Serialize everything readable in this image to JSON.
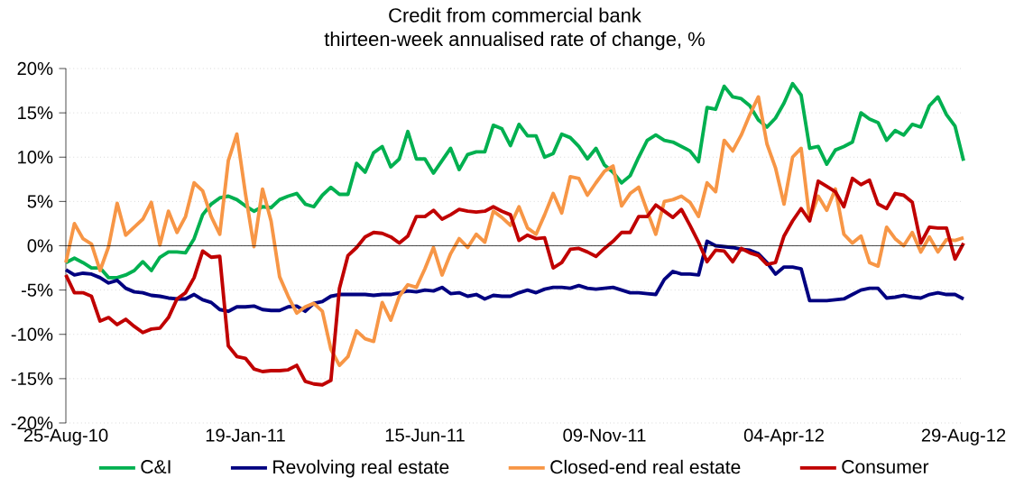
{
  "chart_data": {
    "type": "line",
    "title": "Credit from commercial bank",
    "subtitle": "thirteen-week annualised rate of change, %",
    "x": [
      "2010-08-25",
      "2010-09-01",
      "2010-09-08",
      "2010-09-15",
      "2010-09-22",
      "2010-09-29",
      "2010-10-06",
      "2010-10-13",
      "2010-10-20",
      "2010-10-27",
      "2010-11-03",
      "2010-11-10",
      "2010-11-17",
      "2010-11-24",
      "2010-12-01",
      "2010-12-08",
      "2010-12-15",
      "2010-12-22",
      "2010-12-29",
      "2011-01-05",
      "2011-01-12",
      "2011-01-19",
      "2011-01-26",
      "2011-02-02",
      "2011-02-09",
      "2011-02-16",
      "2011-02-23",
      "2011-03-02",
      "2011-03-09",
      "2011-03-16",
      "2011-03-23",
      "2011-03-30",
      "2011-04-06",
      "2011-04-13",
      "2011-04-20",
      "2011-04-27",
      "2011-05-04",
      "2011-05-11",
      "2011-05-18",
      "2011-05-25",
      "2011-06-01",
      "2011-06-08",
      "2011-06-15",
      "2011-06-22",
      "2011-06-29",
      "2011-07-06",
      "2011-07-13",
      "2011-07-20",
      "2011-07-27",
      "2011-08-03",
      "2011-08-10",
      "2011-08-17",
      "2011-08-24",
      "2011-08-31",
      "2011-09-07",
      "2011-09-14",
      "2011-09-21",
      "2011-09-28",
      "2011-10-05",
      "2011-10-12",
      "2011-10-19",
      "2011-10-26",
      "2011-11-02",
      "2011-11-09",
      "2011-11-16",
      "2011-11-23",
      "2011-11-30",
      "2011-12-07",
      "2011-12-14",
      "2011-12-21",
      "2011-12-28",
      "2012-01-04",
      "2012-01-11",
      "2012-01-18",
      "2012-01-25",
      "2012-02-01",
      "2012-02-08",
      "2012-02-15",
      "2012-02-22",
      "2012-02-29",
      "2012-03-07",
      "2012-03-14",
      "2012-03-21",
      "2012-03-28",
      "2012-04-04",
      "2012-04-11",
      "2012-04-18",
      "2012-04-25",
      "2012-05-02",
      "2012-05-09",
      "2012-05-16",
      "2012-05-23",
      "2012-05-30",
      "2012-06-06",
      "2012-06-13",
      "2012-06-20",
      "2012-06-27",
      "2012-07-04",
      "2012-07-11",
      "2012-07-18",
      "2012-07-25",
      "2012-08-01",
      "2012-08-08",
      "2012-08-15",
      "2012-08-22",
      "2012-08-29"
    ],
    "series": [
      {
        "name": "C&I",
        "color": "#00b050",
        "values": [
          -1.9,
          -1.4,
          -1.9,
          -2.5,
          -2.5,
          -3.6,
          -3.6,
          -3.3,
          -2.8,
          -1.8,
          -2.8,
          -1.3,
          -0.7,
          -0.7,
          -0.8,
          0.8,
          3.5,
          4.7,
          5.4,
          5.6,
          5.2,
          4.5,
          3.9,
          4.4,
          4.3,
          5.2,
          5.6,
          5.9,
          4.7,
          4.4,
          5.7,
          6.6,
          5.8,
          5.8,
          9.3,
          8.3,
          10.5,
          11.2,
          8.9,
          9.8,
          12.9,
          9.8,
          9.8,
          8.2,
          9.6,
          11.0,
          8.6,
          10.3,
          10.6,
          10.6,
          13.6,
          13.2,
          11.3,
          13.7,
          12.4,
          12.4,
          10.0,
          10.4,
          12.6,
          12.2,
          11.2,
          9.8,
          11.0,
          9.1,
          8.3,
          7.1,
          7.9,
          10.0,
          11.9,
          12.5,
          11.9,
          11.7,
          11.2,
          10.7,
          9.5,
          15.6,
          15.4,
          18.0,
          16.8,
          16.6,
          15.8,
          14.2,
          13.4,
          14.4,
          16.1,
          18.3,
          17.0,
          11.0,
          11.2,
          9.2,
          10.8,
          11.2,
          11.7,
          15.0,
          14.3,
          13.9,
          11.9,
          13.0,
          12.5,
          13.7,
          13.4,
          15.8,
          16.8,
          14.8,
          13.5,
          9.6
        ]
      },
      {
        "name": "Revolving real estate",
        "color": "#000080",
        "values": [
          -2.7,
          -3.3,
          -3.1,
          -3.2,
          -3.6,
          -4.2,
          -3.9,
          -4.8,
          -5.2,
          -5.3,
          -5.6,
          -5.7,
          -5.9,
          -6.0,
          -6.0,
          -5.5,
          -6.1,
          -6.4,
          -7.2,
          -7.4,
          -6.9,
          -6.9,
          -6.8,
          -7.2,
          -7.3,
          -7.3,
          -6.9,
          -6.8,
          -7.4,
          -6.5,
          -6.3,
          -5.7,
          -5.5,
          -5.5,
          -5.5,
          -5.5,
          -5.6,
          -5.5,
          -5.5,
          -5.3,
          -5.1,
          -5.2,
          -5.0,
          -5.1,
          -4.7,
          -5.4,
          -5.3,
          -5.7,
          -5.5,
          -6.0,
          -5.6,
          -5.7,
          -5.7,
          -5.3,
          -5.0,
          -5.3,
          -4.9,
          -4.7,
          -4.7,
          -4.8,
          -4.5,
          -4.8,
          -4.9,
          -4.8,
          -4.7,
          -5.0,
          -5.3,
          -5.3,
          -5.4,
          -5.5,
          -3.8,
          -2.9,
          -3.2,
          -3.2,
          -3.3,
          0.5,
          0.0,
          -0.1,
          -0.2,
          -0.4,
          -0.5,
          -0.9,
          -1.9,
          -3.2,
          -2.4,
          -2.4,
          -2.6,
          -6.2,
          -6.2,
          -6.2,
          -6.1,
          -6.0,
          -5.5,
          -5.0,
          -4.8,
          -4.8,
          -5.9,
          -5.8,
          -5.6,
          -5.8,
          -5.9,
          -5.5,
          -5.3,
          -5.5,
          -5.5,
          -6.0
        ]
      },
      {
        "name": "Closed-end real estate",
        "color": "#f79646",
        "values": [
          -1.9,
          2.5,
          0.8,
          0.2,
          -2.8,
          -0.1,
          4.8,
          1.2,
          2.1,
          3.0,
          4.9,
          0.1,
          3.9,
          1.5,
          3.3,
          7.1,
          6.2,
          3.3,
          1.3,
          9.6,
          12.6,
          5.9,
          -0.1,
          6.4,
          2.8,
          -3.5,
          -5.7,
          -7.6,
          -6.9,
          -6.5,
          -7.4,
          -11.7,
          -13.5,
          -12.5,
          -9.6,
          -10.5,
          -10.8,
          -6.4,
          -8.4,
          -5.7,
          -4.4,
          -4.7,
          -2.6,
          -0.2,
          -3.3,
          -0.9,
          0.8,
          -0.2,
          1.3,
          0.4,
          3.9,
          3.2,
          2.3,
          4.4,
          2.0,
          1.3,
          3.5,
          5.9,
          3.7,
          7.8,
          7.6,
          5.7,
          7.1,
          8.4,
          9.0,
          4.5,
          5.9,
          6.6,
          3.9,
          1.3,
          5.0,
          5.2,
          5.6,
          4.9,
          3.3,
          7.1,
          6.1,
          11.9,
          10.7,
          12.5,
          14.8,
          16.8,
          11.5,
          8.8,
          4.7,
          10.0,
          11.0,
          3.0,
          5.6,
          4.0,
          6.4,
          1.3,
          0.3,
          1.1,
          -1.9,
          -2.3,
          2.1,
          0.8,
          0.0,
          1.5,
          -0.7,
          1.0,
          -0.7,
          0.7,
          0.6,
          0.9
        ]
      },
      {
        "name": "Consumer",
        "color": "#c00000",
        "values": [
          -3.3,
          -5.3,
          -5.3,
          -5.7,
          -8.5,
          -8.1,
          -8.9,
          -8.3,
          -9.1,
          -9.8,
          -9.4,
          -9.3,
          -8.1,
          -6.0,
          -5.3,
          -3.6,
          -0.6,
          -1.3,
          -1.2,
          -11.3,
          -12.5,
          -12.7,
          -13.9,
          -14.2,
          -14.1,
          -14.1,
          -14.0,
          -13.5,
          -15.3,
          -15.6,
          -15.7,
          -15.2,
          -4.8,
          -1.1,
          -0.2,
          1.0,
          1.5,
          1.4,
          1.0,
          0.3,
          1.1,
          3.3,
          3.3,
          4.0,
          3.0,
          3.5,
          4.1,
          3.9,
          3.8,
          3.9,
          4.4,
          3.9,
          3.5,
          0.6,
          1.2,
          0.8,
          0.9,
          -2.5,
          -1.9,
          -0.4,
          -0.3,
          -0.7,
          -1.2,
          -0.3,
          0.5,
          1.5,
          1.5,
          3.3,
          3.3,
          4.6,
          3.9,
          3.2,
          4.1,
          2.3,
          0.4,
          -1.8,
          -0.5,
          -0.6,
          -1.8,
          -0.3,
          -0.8,
          -1.1,
          -2.1,
          -1.9,
          1.1,
          2.8,
          4.2,
          2.8,
          7.3,
          6.7,
          6.1,
          4.4,
          7.6,
          6.9,
          7.4,
          4.7,
          4.2,
          5.9,
          5.7,
          4.9,
          0.3,
          2.1,
          2.0,
          2.0,
          -1.5,
          0.3
        ]
      }
    ],
    "xlim": [
      "2010-08-25",
      "2012-08-29"
    ],
    "xticks": [
      {
        "value": "2010-08-25",
        "label": "25-Aug-10"
      },
      {
        "value": "2011-01-19",
        "label": "19-Jan-11"
      },
      {
        "value": "2011-06-15",
        "label": "15-Jun-11"
      },
      {
        "value": "2011-11-09",
        "label": "09-Nov-11"
      },
      {
        "value": "2012-04-04",
        "label": "04-Apr-12"
      },
      {
        "value": "2012-08-29",
        "label": "29-Aug-12"
      }
    ],
    "ylim": [
      -20,
      20
    ],
    "yticks": [
      {
        "value": -20,
        "label": "-20%"
      },
      {
        "value": -15,
        "label": "-15%"
      },
      {
        "value": -10,
        "label": "-10%"
      },
      {
        "value": -5,
        "label": "-5%"
      },
      {
        "value": 0,
        "label": "0%"
      },
      {
        "value": 5,
        "label": "5%"
      },
      {
        "value": 10,
        "label": "10%"
      },
      {
        "value": 15,
        "label": "15%"
      },
      {
        "value": 20,
        "label": "20%"
      }
    ],
    "grid": "y",
    "legend": "bottom"
  }
}
